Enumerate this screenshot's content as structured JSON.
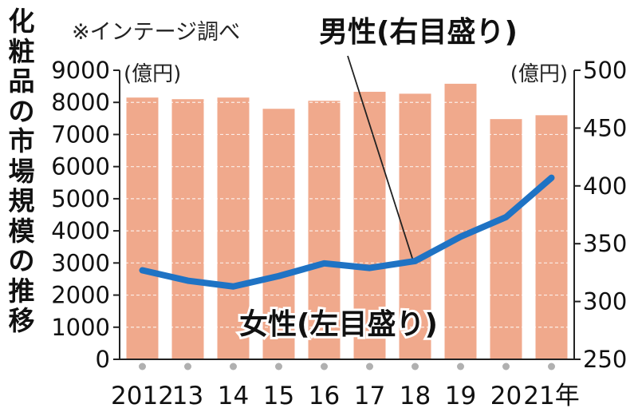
{
  "title_chars": [
    "化",
    "粧",
    "品",
    "の",
    "市",
    "場",
    "規",
    "模",
    "の",
    "推",
    "移"
  ],
  "note": "※インテージ調べ",
  "left_unit": "(億円)",
  "right_unit": "(億円)",
  "colors": {
    "bar": "#f0a98c",
    "line": "#1f73c4",
    "axis": "#222222",
    "dot": "#b0b0b0"
  },
  "chart_data": {
    "type": "bar",
    "categories": [
      "2012",
      "13",
      "14",
      "15",
      "16",
      "17",
      "18",
      "19",
      "20",
      "21年"
    ],
    "left_axis": {
      "ylim": [
        0,
        9000
      ],
      "ticks": [
        "0",
        "1000",
        "2000",
        "3000",
        "4000",
        "5000",
        "6000",
        "7000",
        "8000",
        "9000"
      ]
    },
    "right_axis": {
      "ylim": [
        250,
        500
      ],
      "ticks": [
        "250",
        "300",
        "350",
        "400",
        "450",
        "500"
      ]
    },
    "series": [
      {
        "name": "女性(左目盛り)",
        "type": "bar",
        "axis": "left",
        "values": [
          8150,
          8100,
          8150,
          7800,
          8050,
          8330,
          8270,
          8580,
          7480,
          7600
        ]
      },
      {
        "name": "男性(右目盛り)",
        "type": "line",
        "axis": "right",
        "values": [
          327,
          318,
          313,
          322,
          333,
          329,
          335,
          356,
          373,
          407
        ]
      }
    ]
  }
}
